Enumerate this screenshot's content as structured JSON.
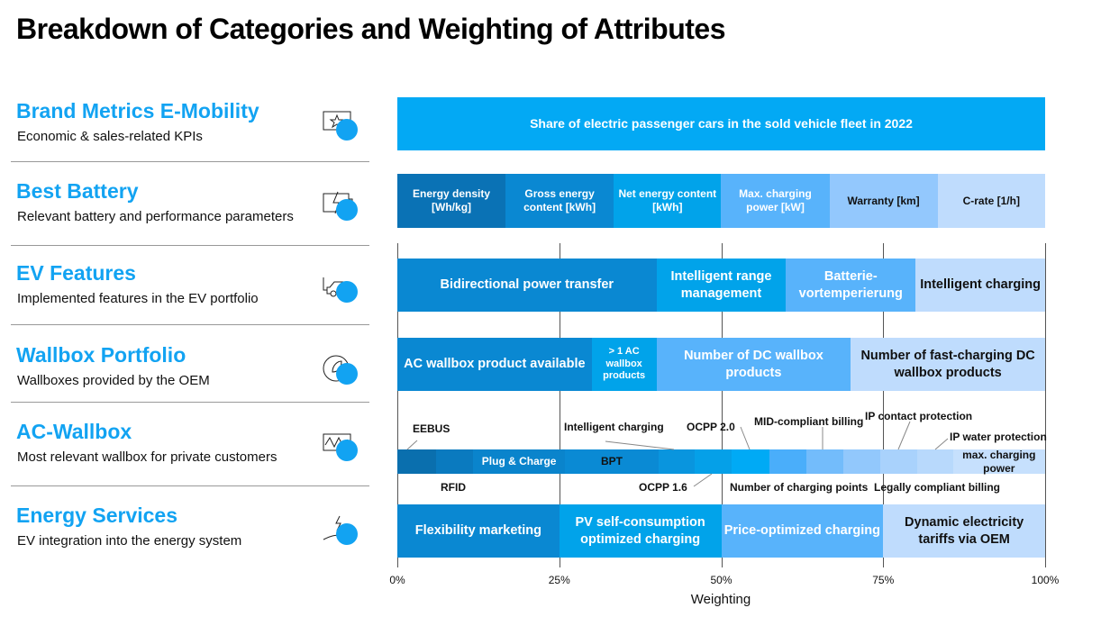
{
  "title": "Breakdown of Categories and Weighting of Attributes",
  "categories": [
    {
      "name": "Brand Metrics E-Mobility",
      "desc": "Economic & sales-related KPIs",
      "icon": "star-speech-bubble-icon"
    },
    {
      "name": "Best Battery",
      "desc": "Relevant battery and performance parameters",
      "icon": "battery-bolt-icon"
    },
    {
      "name": "EV Features",
      "desc": "Implemented features in the EV portfolio",
      "icon": "electric-car-icon"
    },
    {
      "name": "Wallbox Portfolio",
      "desc": "Wallboxes provided by the OEM",
      "icon": "leaf-plug-icon"
    },
    {
      "name": "AC-Wallbox",
      "desc": "Most relevant wallbox for private customers",
      "icon": "wallbox-wave-icon"
    },
    {
      "name": "Energy Services",
      "desc": "EV integration into the energy system",
      "icon": "hand-bolt-icon"
    }
  ],
  "colors": {
    "accent": "#12a3f2",
    "c1": "#0a72b5",
    "c2": "#0a88d2",
    "c3": "#01a3ea",
    "c4": "#58b3fb",
    "c5": "#93c8fd",
    "c6": "#bfdcfd",
    "brand": "#03a9f4"
  },
  "chart_data": {
    "type": "bar",
    "orientation": "horizontal-stacked",
    "xlabel": "Weighting",
    "xlim": [
      0,
      100
    ],
    "xticks": [
      "0%",
      "25%",
      "50%",
      "75%",
      "100%"
    ],
    "grid": true,
    "rows": [
      {
        "category": "Brand Metrics E-Mobility",
        "segments": [
          {
            "label": "Share of electric passenger cars in the sold vehicle fleet in 2022",
            "weight": 100,
            "color": "#03a9f4",
            "text": "#fff"
          }
        ]
      },
      {
        "category": "Best Battery",
        "segments": [
          {
            "label": "Energy density [Wh/kg]",
            "weight": 16.7,
            "color": "#0a72b5",
            "text": "#fff"
          },
          {
            "label": "Gross energy content [kWh]",
            "weight": 16.7,
            "color": "#0a88d2",
            "text": "#fff"
          },
          {
            "label": "Net energy content [kWh]",
            "weight": 16.6,
            "color": "#01a3ea",
            "text": "#fff"
          },
          {
            "label": "Max. charging power [kW]",
            "weight": 16.7,
            "color": "#58b3fb",
            "text": "#fff"
          },
          {
            "label": "Warranty [km]",
            "weight": 16.7,
            "color": "#93c8fd",
            "text": "#111"
          },
          {
            "label": "C-rate [1/h]",
            "weight": 16.6,
            "color": "#bfdcfd",
            "text": "#111"
          }
        ]
      },
      {
        "category": "EV Features",
        "segments": [
          {
            "label": "Bidirectional power transfer",
            "weight": 40,
            "color": "#0a88d2",
            "text": "#fff"
          },
          {
            "label": "Intelligent range management",
            "weight": 20,
            "color": "#01a3ea",
            "text": "#fff"
          },
          {
            "label": "Batterie-vortemperierung",
            "weight": 20,
            "color": "#58b3fb",
            "text": "#fff"
          },
          {
            "label": "Intelligent charging",
            "weight": 20,
            "color": "#bfdcfd",
            "text": "#111"
          }
        ]
      },
      {
        "category": "Wallbox Portfolio",
        "segments": [
          {
            "label": "AC wallbox product available",
            "weight": 30,
            "color": "#0a88d2",
            "text": "#fff"
          },
          {
            "label": "> 1 AC wallbox products",
            "weight": 10,
            "color": "#01a3ea",
            "text": "#fff"
          },
          {
            "label": "Number of DC wallbox products",
            "weight": 30,
            "color": "#58b3fb",
            "text": "#fff"
          },
          {
            "label": "Number of fast-charging DC wallbox products",
            "weight": 30,
            "color": "#bfdcfd",
            "text": "#111"
          }
        ]
      },
      {
        "category": "AC-Wallbox",
        "segments": [
          {
            "label": "EEBUS",
            "weight": 6,
            "color": "#0a6fae",
            "text": "#fff",
            "inside": false
          },
          {
            "label": "RFID",
            "weight": 5.7,
            "color": "#0a7abf",
            "text": "#fff",
            "inside": false
          },
          {
            "label": "Plug & Charge",
            "weight": 14.2,
            "color": "#0a84cc",
            "text": "#fff",
            "inside": true
          },
          {
            "label": "BPT",
            "weight": 14.4,
            "color": "#0a8ad4",
            "text": "#111",
            "inside": true
          },
          {
            "label": "Intelligent charging",
            "weight": 5.6,
            "color": "#0995de",
            "text": "#fff",
            "inside": false
          },
          {
            "label": "OCPP 1.6",
            "weight": 5.7,
            "color": "#05a0e8",
            "text": "#fff",
            "inside": false
          },
          {
            "label": "OCPP 2.0",
            "weight": 5.8,
            "color": "#00aaf5",
            "text": "#fff",
            "inside": false
          },
          {
            "label": "Number of charging points",
            "weight": 5.7,
            "color": "#4aaefa",
            "text": "#fff",
            "inside": false
          },
          {
            "label": "MID-compliant billing",
            "weight": 5.7,
            "color": "#73bcfb",
            "text": "#fff",
            "inside": false
          },
          {
            "label": "Legally compliant billing",
            "weight": 5.7,
            "color": "#92c8fc",
            "text": "#fff",
            "inside": false
          },
          {
            "label": "IP contact protection",
            "weight": 5.7,
            "color": "#a9d2fc",
            "text": "#fff",
            "inside": false
          },
          {
            "label": "IP water protection",
            "weight": 5.6,
            "color": "#b8d9fc",
            "text": "#fff",
            "inside": false
          },
          {
            "label": "max. charging power",
            "weight": 14.2,
            "color": "#c6e0fd",
            "text": "#111",
            "inside": true
          }
        ]
      },
      {
        "category": "Energy Services",
        "segments": [
          {
            "label": "Flexibility marketing",
            "weight": 25,
            "color": "#0a88d2",
            "text": "#fff"
          },
          {
            "label": "PV self-consumption optimized charging",
            "weight": 25,
            "color": "#01a3ea",
            "text": "#fff"
          },
          {
            "label": "Price-optimized charging",
            "weight": 25,
            "color": "#58b3fb",
            "text": "#fff"
          },
          {
            "label": "Dynamic electricity tariffs via OEM",
            "weight": 25,
            "color": "#bfdcfd",
            "text": "#111"
          }
        ]
      }
    ]
  }
}
